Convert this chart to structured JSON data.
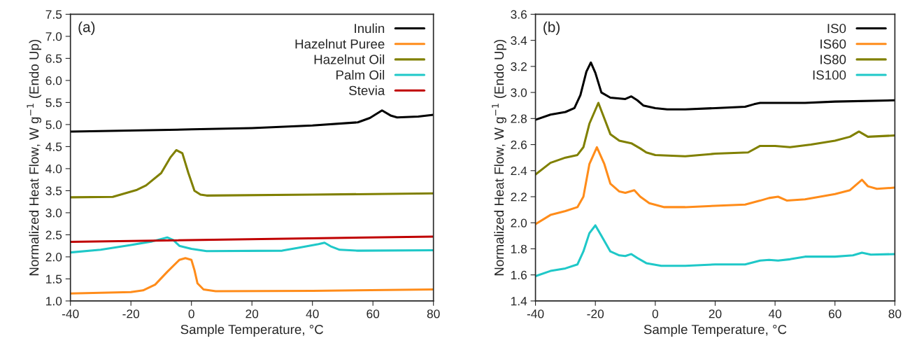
{
  "chart_data": [
    {
      "type": "line",
      "xlabel": "Sample Temperature, °C",
      "ylabel": "Normalized Heat Flow, W g$^{−1}$ (Endo Up)",
      "annotations": [
        "(a)"
      ],
      "xlim": [
        -40,
        80
      ],
      "xticks": [
        -40,
        -20,
        0,
        20,
        40,
        60,
        80
      ],
      "ylim": [
        1.0,
        7.5
      ],
      "yticks": [
        {
          "value": 1.0,
          "label": "1.0"
        },
        {
          "value": 1.5,
          "label": "1.5"
        },
        {
          "value": 2.0,
          "label": "2.0"
        },
        {
          "value": 2.5,
          "label": "2.5"
        },
        {
          "value": 3.0,
          "label": "3.0"
        },
        {
          "value": 3.5,
          "label": "3.5"
        },
        {
          "value": 4.0,
          "label": "4.0"
        },
        {
          "value": 4.5,
          "label": "4.5"
        },
        {
          "value": 5.0,
          "label": "5.0"
        },
        {
          "value": 5.5,
          "label": "5.5"
        },
        {
          "value": 6.0,
          "label": "6.0"
        },
        {
          "value": 6.5,
          "label": "6.5"
        },
        {
          "value": 7.0,
          "label": "7.0"
        },
        {
          "value": 7.5,
          "label": "7.5"
        }
      ],
      "legend": "top right",
      "grid": false,
      "series": [
        {
          "name": "Inulin",
          "color": "#000000",
          "x": [
            -40,
            0,
            20,
            40,
            55,
            59,
            63,
            66,
            68,
            75,
            80
          ],
          "values": [
            4.84,
            4.89,
            4.92,
            4.98,
            5.05,
            5.15,
            5.32,
            5.2,
            5.16,
            5.18,
            5.22
          ]
        },
        {
          "name": "Hazelnut Puree",
          "color": "#ff8c1a",
          "x": [
            -40,
            -20,
            -16,
            -12,
            -8,
            -4,
            -2,
            0,
            1,
            2,
            4,
            8,
            40,
            80
          ],
          "values": [
            1.17,
            1.2,
            1.24,
            1.37,
            1.66,
            1.93,
            1.97,
            1.93,
            1.7,
            1.4,
            1.26,
            1.22,
            1.23,
            1.26
          ]
        },
        {
          "name": "Hazelnut Oil",
          "color": "#808000",
          "x": [
            -40,
            -26,
            -22,
            -18,
            -15,
            -10,
            -7,
            -5,
            -3,
            -1,
            1,
            3,
            5,
            40,
            80
          ],
          "values": [
            3.35,
            3.36,
            3.44,
            3.52,
            3.62,
            3.9,
            4.25,
            4.42,
            4.35,
            3.9,
            3.5,
            3.41,
            3.39,
            3.41,
            3.44
          ]
        },
        {
          "name": "Palm Oil",
          "color": "#1fc8c8",
          "x": [
            -40,
            -30,
            -20,
            -13,
            -8,
            -6,
            -4,
            0,
            5,
            30,
            35,
            42,
            44,
            46,
            49,
            55,
            80
          ],
          "values": [
            2.1,
            2.16,
            2.27,
            2.35,
            2.44,
            2.38,
            2.25,
            2.18,
            2.13,
            2.14,
            2.2,
            2.29,
            2.32,
            2.24,
            2.16,
            2.14,
            2.15
          ]
        },
        {
          "name": "Stevia",
          "color": "#c00000",
          "x": [
            -40,
            80
          ],
          "values": [
            2.34,
            2.46
          ]
        }
      ]
    },
    {
      "type": "line",
      "xlabel": "Sample Temperature, °C",
      "ylabel": "Normalized Heat Flow, W g$^{−1}$ (Endo Up)",
      "annotations": [
        "(b)"
      ],
      "xlim": [
        -40,
        80
      ],
      "xticks": [
        -40,
        -20,
        0,
        20,
        40,
        60,
        80
      ],
      "ylim": [
        1.4,
        3.6
      ],
      "yticks": [
        {
          "value": 1.4,
          "label": "1.4"
        },
        {
          "value": 1.6,
          "label": "1.6"
        },
        {
          "value": 1.8,
          "label": "1.8"
        },
        {
          "value": 2.0,
          "label": "2.0"
        },
        {
          "value": 2.2,
          "label": "2.2"
        },
        {
          "value": 2.4,
          "label": "2.4"
        },
        {
          "value": 2.6,
          "label": "2.6"
        },
        {
          "value": 2.8,
          "label": "2.8"
        },
        {
          "value": 3.0,
          "label": "3.0"
        },
        {
          "value": 3.2,
          "label": "3.2"
        },
        {
          "value": 3.4,
          "label": "3.4"
        },
        {
          "value": 3.6,
          "label": "3.6"
        }
      ],
      "legend": "top right",
      "grid": false,
      "series": [
        {
          "name": "IS0",
          "color": "#000000",
          "x": [
            -40,
            -35,
            -30,
            -27,
            -25,
            -23,
            -21.5,
            -20,
            -18,
            -15,
            -10,
            -8,
            -6,
            -4,
            0,
            4,
            10,
            20,
            30,
            33,
            35,
            40,
            50,
            60,
            80
          ],
          "values": [
            2.79,
            2.83,
            2.85,
            2.88,
            2.98,
            3.16,
            3.23,
            3.15,
            3.0,
            2.96,
            2.95,
            2.97,
            2.94,
            2.9,
            2.88,
            2.87,
            2.87,
            2.88,
            2.89,
            2.91,
            2.92,
            2.92,
            2.92,
            2.93,
            2.94
          ]
        },
        {
          "name": "IS60",
          "color": "#ff8c1a",
          "x": [
            -40,
            -35,
            -30,
            -26,
            -24,
            -22,
            -19.5,
            -17,
            -15,
            -12,
            -10,
            -7,
            -5,
            -2,
            3,
            10,
            20,
            30,
            35,
            38,
            41,
            44,
            50,
            60,
            65,
            69,
            71,
            74,
            80
          ],
          "values": [
            1.99,
            2.06,
            2.09,
            2.12,
            2.2,
            2.45,
            2.58,
            2.45,
            2.3,
            2.24,
            2.23,
            2.25,
            2.2,
            2.15,
            2.12,
            2.12,
            2.13,
            2.14,
            2.17,
            2.19,
            2.2,
            2.17,
            2.18,
            2.22,
            2.25,
            2.33,
            2.28,
            2.26,
            2.27
          ]
        },
        {
          "name": "IS80",
          "color": "#808000",
          "x": [
            -40,
            -35,
            -30,
            -26,
            -24,
            -22,
            -19,
            -17,
            -15,
            -12,
            -8,
            -5,
            -3,
            0,
            10,
            20,
            31,
            35,
            40,
            45,
            52,
            60,
            65,
            68,
            71,
            80
          ],
          "values": [
            2.37,
            2.46,
            2.5,
            2.52,
            2.58,
            2.76,
            2.92,
            2.8,
            2.68,
            2.63,
            2.61,
            2.57,
            2.54,
            2.52,
            2.51,
            2.53,
            2.54,
            2.59,
            2.59,
            2.58,
            2.6,
            2.63,
            2.66,
            2.7,
            2.66,
            2.67
          ]
        },
        {
          "name": "IS100",
          "color": "#1fc8c8",
          "x": [
            -40,
            -35,
            -30,
            -26,
            -24,
            -22,
            -20,
            -18,
            -15,
            -12,
            -10,
            -8,
            -6,
            -3,
            2,
            10,
            20,
            30,
            35,
            38,
            41,
            45,
            50,
            60,
            66,
            69,
            72,
            80
          ],
          "values": [
            1.59,
            1.63,
            1.65,
            1.68,
            1.78,
            1.92,
            1.98,
            1.9,
            1.78,
            1.75,
            1.745,
            1.76,
            1.73,
            1.69,
            1.67,
            1.67,
            1.68,
            1.68,
            1.71,
            1.715,
            1.71,
            1.72,
            1.74,
            1.74,
            1.75,
            1.77,
            1.755,
            1.76
          ]
        }
      ]
    }
  ]
}
